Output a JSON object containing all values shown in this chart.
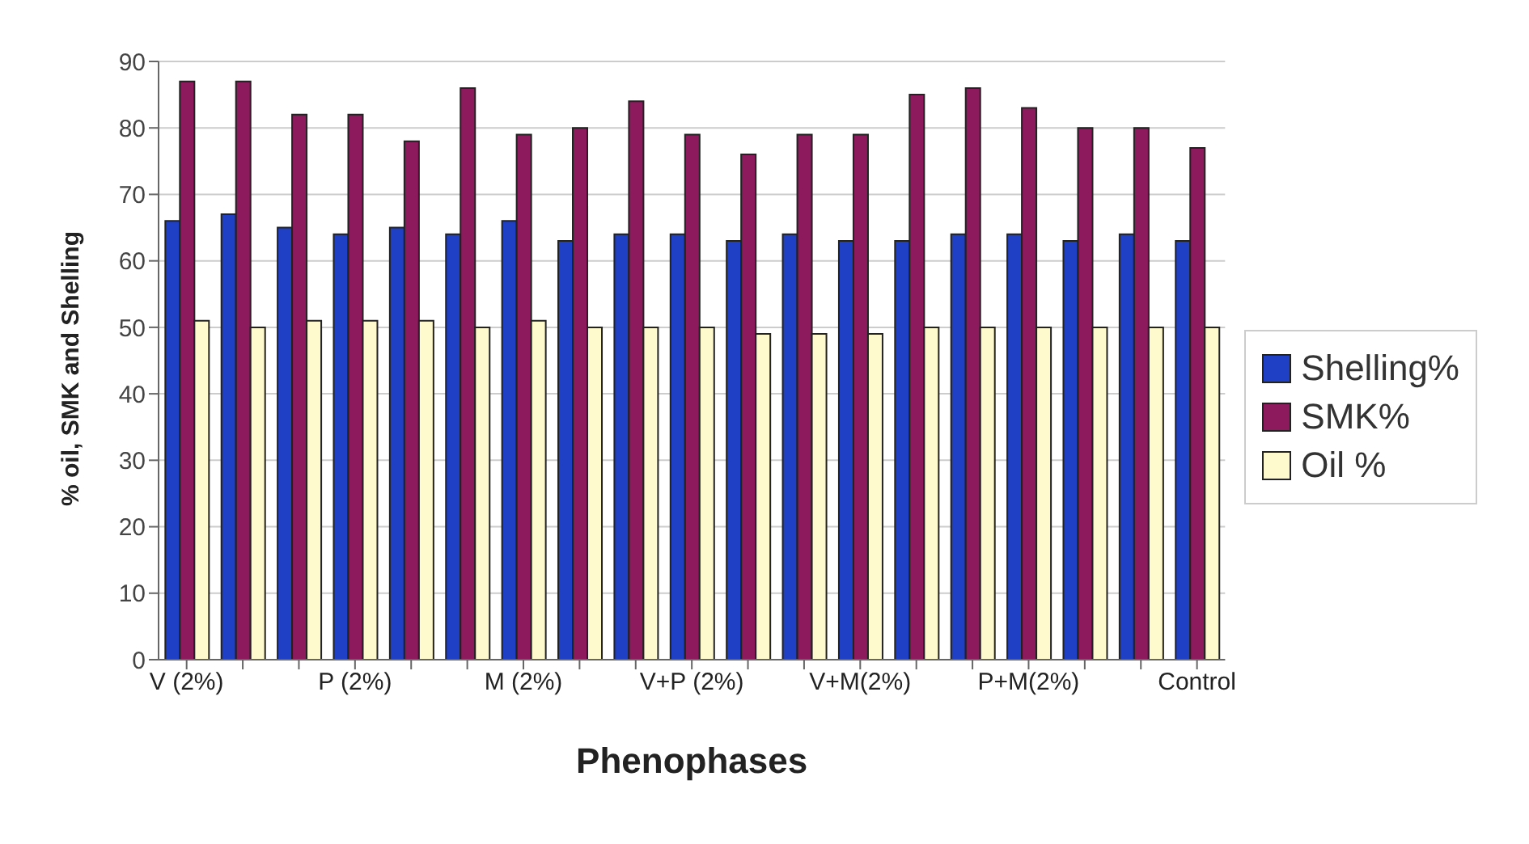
{
  "chart_data": {
    "type": "bar",
    "xlabel": "Phenophases",
    "ylabel": "% oil, SMK and Shelling",
    "categories": [
      "V (2%)",
      null,
      null,
      "P (2%)",
      null,
      null,
      "M (2%)",
      null,
      null,
      "V+P (2%)",
      null,
      null,
      "V+M(2%)",
      null,
      null,
      "P+M(2%)",
      null,
      null,
      "Control"
    ],
    "series": [
      {
        "name": "Shelling%",
        "color": "#1f3fc4",
        "values": [
          66,
          67,
          65,
          64,
          65,
          64,
          66,
          63,
          64,
          64,
          63,
          64,
          63,
          63,
          64,
          64,
          63,
          64,
          63
        ]
      },
      {
        "name": "SMK%",
        "color": "#8e1a5e",
        "values": [
          87,
          87,
          82,
          82,
          78,
          86,
          79,
          80,
          84,
          79,
          76,
          79,
          79,
          85,
          86,
          83,
          80,
          80,
          77
        ]
      },
      {
        "name": "Oil %",
        "color": "#fffacd",
        "values": [
          51,
          50,
          51,
          51,
          51,
          50,
          51,
          50,
          50,
          50,
          49,
          49,
          49,
          50,
          50,
          50,
          50,
          50,
          50
        ]
      }
    ],
    "ylim": [
      0,
      90
    ],
    "yticks": [
      0,
      10,
      20,
      30,
      40,
      50,
      60,
      70,
      80,
      90
    ],
    "grid": "y",
    "legend": "right"
  }
}
